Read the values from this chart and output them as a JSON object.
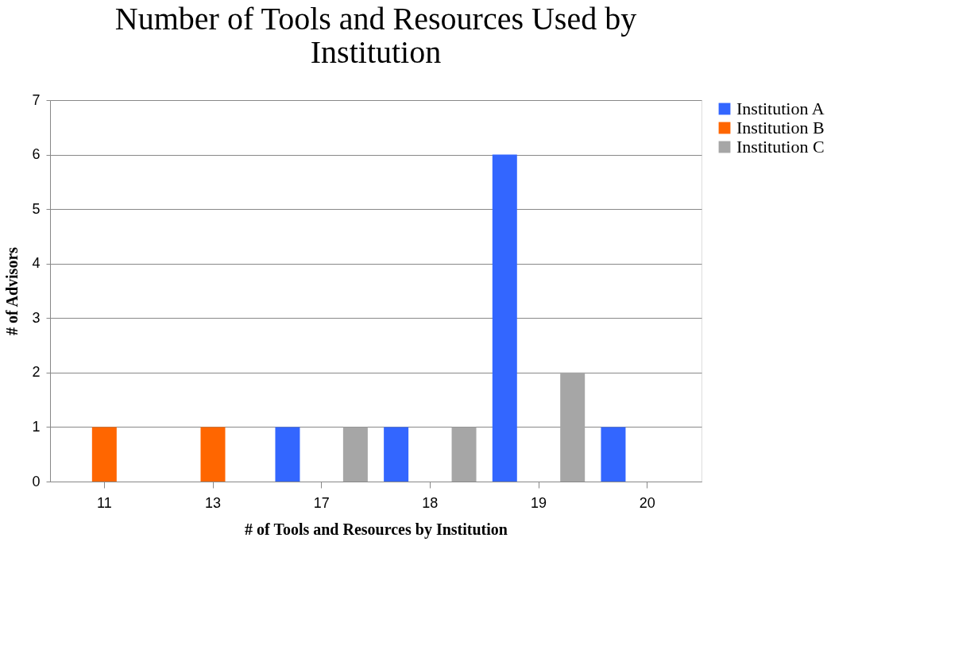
{
  "chart_data": {
    "type": "bar",
    "title": "Number of Tools and Resources Used by Institution",
    "xlabel": "# of Tools and Resources by Institution",
    "ylabel": "# of Advisors",
    "categories": [
      "11",
      "13",
      "17",
      "18",
      "19",
      "20"
    ],
    "series": [
      {
        "name": "Institution A",
        "color": "#3366ff",
        "values": [
          null,
          null,
          1,
          1,
          6,
          1
        ]
      },
      {
        "name": "Institution B",
        "color": "#ff6600",
        "values": [
          1,
          1,
          null,
          null,
          null,
          null
        ]
      },
      {
        "name": "Institution C",
        "color": "#a6a6a6",
        "values": [
          null,
          null,
          1,
          1,
          2,
          null
        ]
      }
    ],
    "ylim": [
      0,
      7
    ],
    "yticks": [
      0,
      1,
      2,
      3,
      4,
      5,
      6,
      7
    ],
    "grid": "y",
    "legend": "right"
  }
}
